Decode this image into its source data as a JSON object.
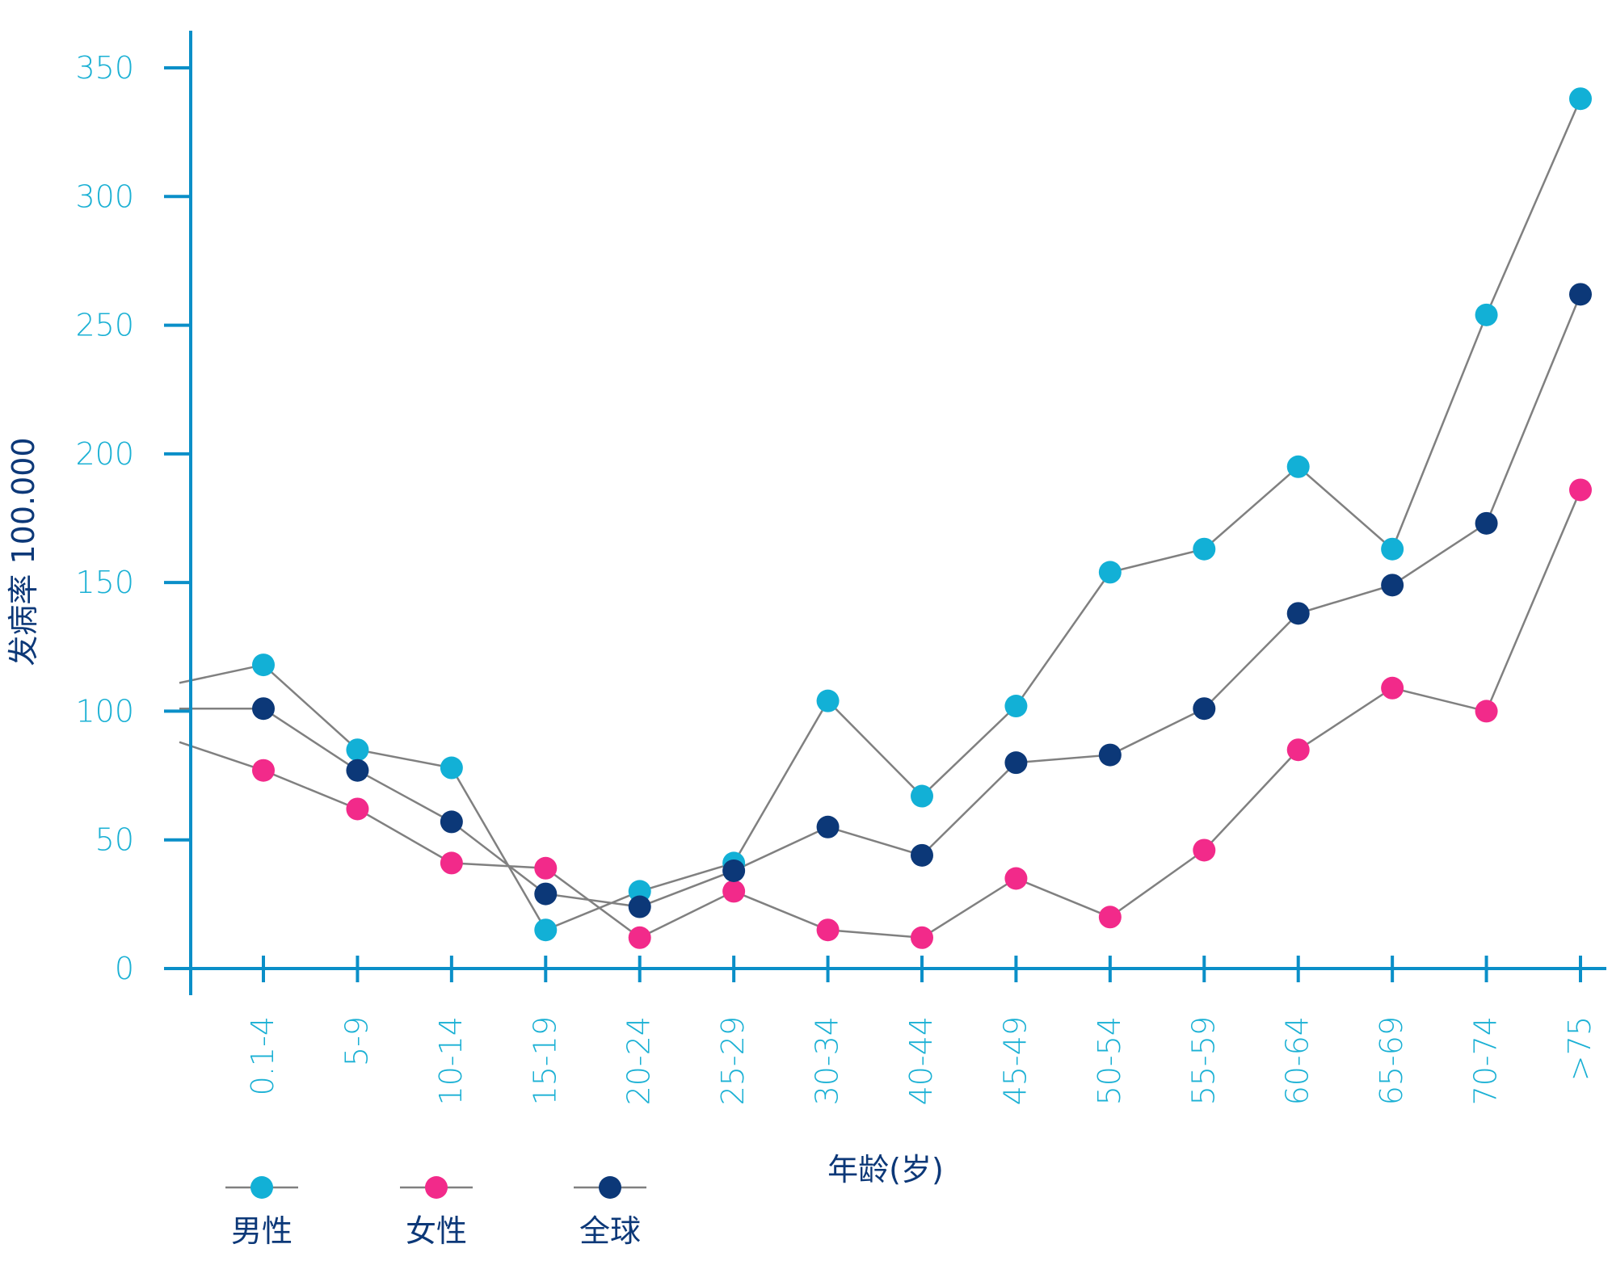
{
  "colors": {
    "axis": "#0a8fc8",
    "tick_text": "#1ab0d4",
    "title_text": "#0c3878",
    "connector": "#808080",
    "male": "#12b0d6",
    "female": "#f22a8a",
    "overall": "#0c3878"
  },
  "chart_data": {
    "type": "line",
    "ylabel": "发病率 100.000",
    "xlabel": "年龄(岁)",
    "ylim": [
      0,
      350
    ],
    "yticks": [
      0,
      50,
      100,
      150,
      200,
      250,
      300,
      350
    ],
    "grid": false,
    "legend_position": "bottom-left",
    "categories": [
      "0.1-4",
      "5-9",
      "10-14",
      "15-19",
      "20-24",
      "25-29",
      "30-34",
      "40-44",
      "45-49",
      "50-54",
      "55-59",
      "60-64",
      "65-69",
      "70-74",
      ">75"
    ],
    "series": [
      {
        "name": "男性",
        "color_key": "male",
        "start_value": 111,
        "values": [
          118,
          85,
          78,
          15,
          30,
          41,
          104,
          67,
          102,
          154,
          163,
          195,
          163,
          254,
          338
        ]
      },
      {
        "name": "女性",
        "color_key": "female",
        "start_value": 88,
        "values": [
          77,
          62,
          41,
          39,
          12,
          30,
          15,
          12,
          35,
          20,
          46,
          85,
          109,
          100,
          186
        ]
      },
      {
        "name": "全球",
        "color_key": "overall",
        "start_value": 101,
        "values": [
          101,
          77,
          57,
          29,
          24,
          38,
          55,
          44,
          80,
          83,
          101,
          138,
          149,
          173,
          262
        ]
      }
    ]
  }
}
